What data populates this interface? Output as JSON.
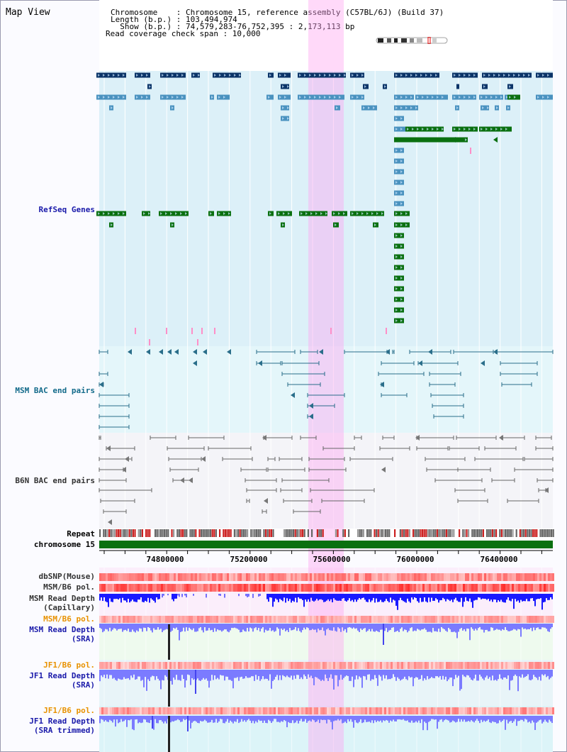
{
  "title": "Map View",
  "info": {
    "chromosome_line": "Chromosome    : Chromosome 15, reference assembly (C57BL/6J) (Build 37)",
    "length_line": "Length (b.p.) : 103,494,974",
    "show_line": "  Show (b.p.) : 74,579,283-76,752,395 : 2,173,113 bp",
    "coverage_line": "Read coverage check span : 10,000"
  },
  "tracks": {
    "refseq": "RefSeq Genes",
    "msm_bac": "MSM BAC end pairs",
    "b6n_bac": "B6N BAC end pairs",
    "repeat": "Repeat",
    "chromosome": "chromosome 15",
    "dbsnp": "dbSNP(Mouse)",
    "msm_b6_pol": "MSM/B6 pol.",
    "msm_depth_cap_1": "MSM Read Depth",
    "msm_depth_cap_2": "(Capillary)",
    "msm_b6_pol_2": "MSM/B6 pol.",
    "msm_depth_sra_1": "MSM Read Depth",
    "msm_depth_sra_2": "(SRA)",
    "jf1_b6_pol": "JF1/B6 pol.",
    "jf1_depth_sra_1": "JF1 Read Depth",
    "jf1_depth_sra_2": "(SRA)",
    "jf1_b6_pol_2": "JF1/B6 pol.",
    "jf1_depth_trim_1": "JF1 Read Depth",
    "jf1_depth_trim_2": "(SRA trimmed)"
  },
  "axis": {
    "ticks": [
      "74800000",
      "75200000",
      "75600000",
      "76000000",
      "76400000"
    ]
  },
  "colors": {
    "refseq_dark": "#0b3468",
    "refseq_light": "#4a92bf",
    "refseq_green": "#0a7010",
    "highlight": "#ff9ff0",
    "msm_bac": "#2a6e8a",
    "b6n_bac": "#666666",
    "chromosome": "#0a7010",
    "depth_blue": "#1a1aff",
    "depth_light": "#7b7bff",
    "label_blue": "#1a1aaa",
    "label_orange": "#e89200",
    "label_teal": "#126a8a"
  }
}
